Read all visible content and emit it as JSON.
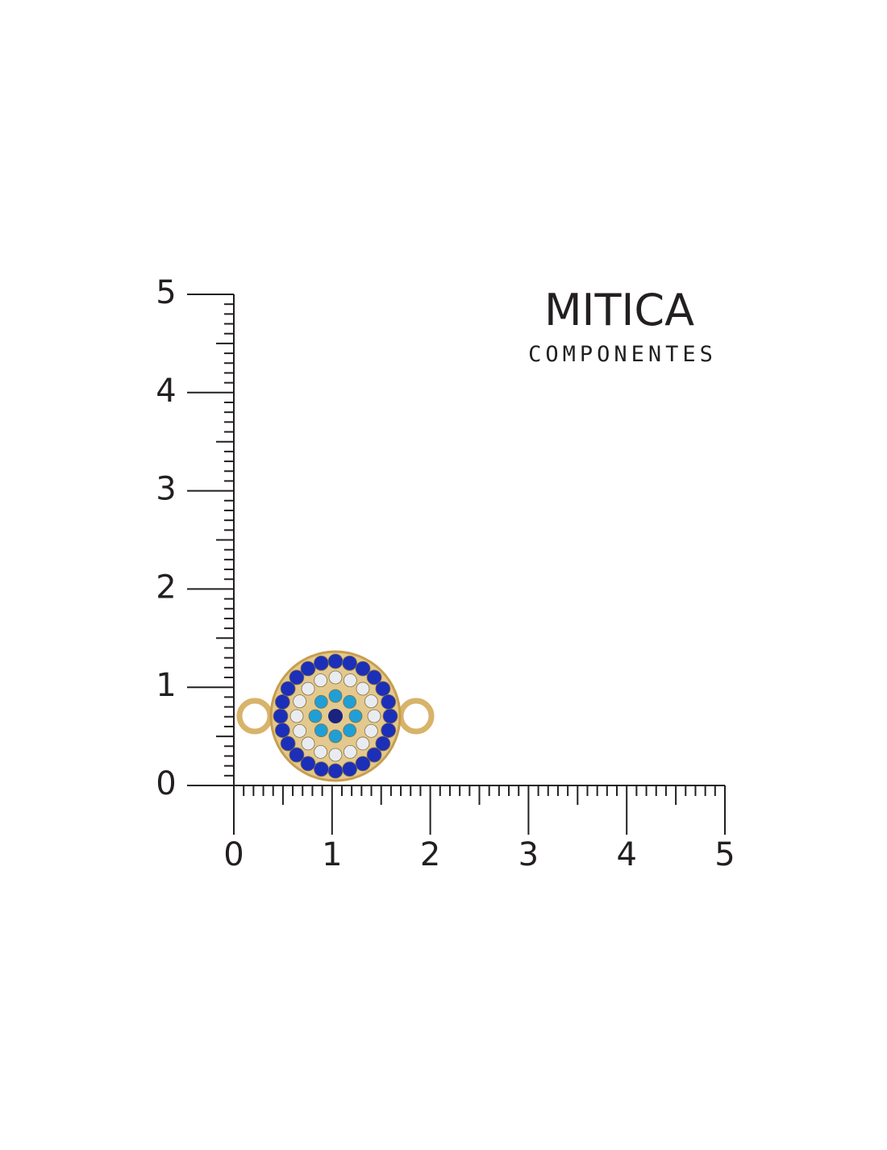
{
  "brand": {
    "name": "MITICA",
    "tagline": "COMPONENTES"
  },
  "ruler": {
    "x_labels": [
      "0",
      "1",
      "2",
      "3",
      "4",
      "5"
    ],
    "y_labels": [
      "0",
      "1",
      "2",
      "3",
      "4",
      "5"
    ]
  }
}
